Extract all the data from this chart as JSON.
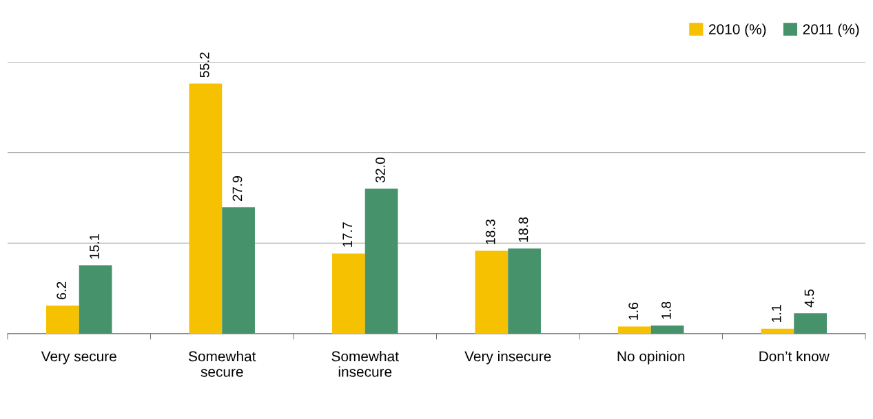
{
  "chart_data": {
    "type": "bar",
    "categories": [
      "Very secure",
      "Somewhat secure",
      "Somewhat insecure",
      "Very insecure",
      "No opinion",
      "Don’t know"
    ],
    "series": [
      {
        "name": "2010 (%)",
        "color": "#f5c100",
        "values": [
          6.2,
          55.2,
          17.7,
          18.3,
          1.6,
          1.1
        ],
        "value_labels": [
          "6.2",
          "55.2",
          "17.7",
          "18.3",
          "1.6",
          "1.1"
        ]
      },
      {
        "name": "2011 (%)",
        "color": "#46926b",
        "values": [
          15.1,
          27.9,
          32.0,
          18.8,
          1.8,
          4.5
        ],
        "value_labels": [
          "15.1",
          "27.9",
          "32.0",
          "18.8",
          "1.8",
          "4.5"
        ]
      }
    ],
    "ylim": [
      0,
      60
    ],
    "yticks": [
      {
        "value": 0,
        "label": null
      },
      {
        "value": 20,
        "label": null
      },
      {
        "value": 40,
        "label": null
      },
      {
        "value": 60,
        "label": null
      }
    ],
    "grid": "y",
    "legend": "top right"
  }
}
